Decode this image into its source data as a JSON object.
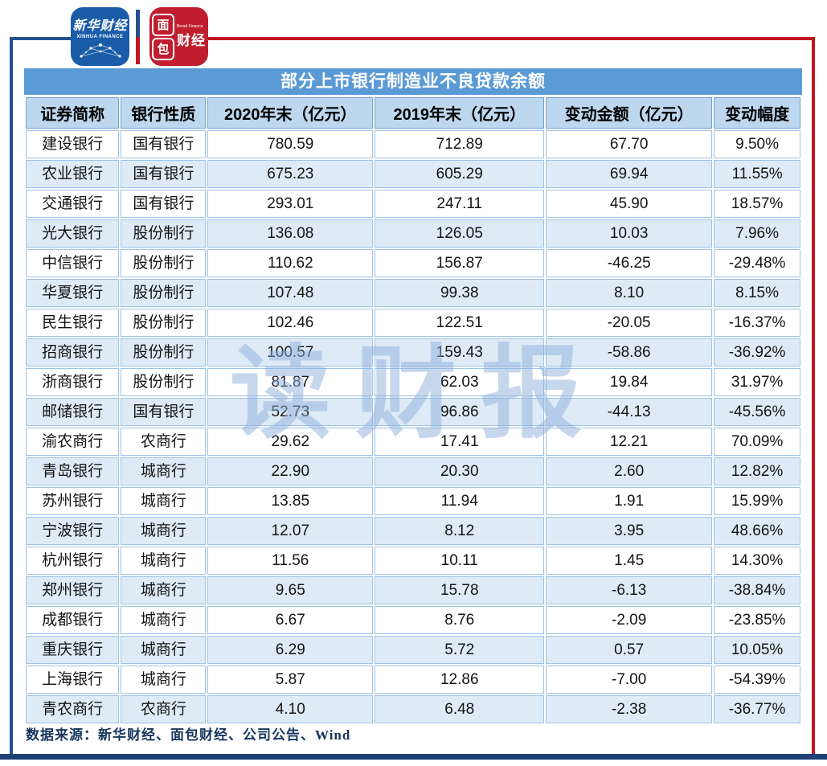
{
  "logos": {
    "xinhua": {
      "title": "新华财经",
      "subtitle": "XINHUA FINANCE"
    },
    "bread": {
      "char_top": "面",
      "char_bottom": "包",
      "caijing": "财经",
      "subtitle": "Bread Finance"
    }
  },
  "table": {
    "title": "部分上市银行制造业不良贷款余额",
    "columns": [
      "证券简称",
      "银行性质",
      "2020年末（亿元）",
      "2019年末（亿元）",
      "变动金额（亿元）",
      "变动幅度"
    ],
    "rows": [
      [
        "建设银行",
        "国有银行",
        "780.59",
        "712.89",
        "67.70",
        "9.50%"
      ],
      [
        "农业银行",
        "国有银行",
        "675.23",
        "605.29",
        "69.94",
        "11.55%"
      ],
      [
        "交通银行",
        "国有银行",
        "293.01",
        "247.11",
        "45.90",
        "18.57%"
      ],
      [
        "光大银行",
        "股份制行",
        "136.08",
        "126.05",
        "10.03",
        "7.96%"
      ],
      [
        "中信银行",
        "股份制行",
        "110.62",
        "156.87",
        "-46.25",
        "-29.48%"
      ],
      [
        "华夏银行",
        "股份制行",
        "107.48",
        "99.38",
        "8.10",
        "8.15%"
      ],
      [
        "民生银行",
        "股份制行",
        "102.46",
        "122.51",
        "-20.05",
        "-16.37%"
      ],
      [
        "招商银行",
        "股份制行",
        "100.57",
        "159.43",
        "-58.86",
        "-36.92%"
      ],
      [
        "浙商银行",
        "股份制行",
        "81.87",
        "62.03",
        "19.84",
        "31.97%"
      ],
      [
        "邮储银行",
        "国有银行",
        "52.73",
        "96.86",
        "-44.13",
        "-45.56%"
      ],
      [
        "渝农商行",
        "农商行",
        "29.62",
        "17.41",
        "12.21",
        "70.09%"
      ],
      [
        "青岛银行",
        "城商行",
        "22.90",
        "20.30",
        "2.60",
        "12.82%"
      ],
      [
        "苏州银行",
        "城商行",
        "13.85",
        "11.94",
        "1.91",
        "15.99%"
      ],
      [
        "宁波银行",
        "城商行",
        "12.07",
        "8.12",
        "3.95",
        "48.66%"
      ],
      [
        "杭州银行",
        "城商行",
        "11.56",
        "10.11",
        "1.45",
        "14.30%"
      ],
      [
        "郑州银行",
        "城商行",
        "9.65",
        "15.78",
        "-6.13",
        "-38.84%"
      ],
      [
        "成都银行",
        "城商行",
        "6.67",
        "8.76",
        "-2.09",
        "-23.85%"
      ],
      [
        "重庆银行",
        "城商行",
        "6.29",
        "5.72",
        "0.57",
        "10.05%"
      ],
      [
        "上海银行",
        "城商行",
        "5.87",
        "12.86",
        "-7.00",
        "-54.39%"
      ],
      [
        "青农商行",
        "农商行",
        "4.10",
        "6.48",
        "-2.38",
        "-36.77%"
      ]
    ]
  },
  "chart_data": {
    "type": "table",
    "title": "部分上市银行制造业不良贷款余额",
    "columns": [
      "证券简称",
      "银行性质",
      "2020年末（亿元）",
      "2019年末（亿元）",
      "变动金额（亿元）",
      "变动幅度"
    ],
    "banks": [
      "建设银行",
      "农业银行",
      "交通银行",
      "光大银行",
      "中信银行",
      "华夏银行",
      "民生银行",
      "招商银行",
      "浙商银行",
      "邮储银行",
      "渝农商行",
      "青岛银行",
      "苏州银行",
      "宁波银行",
      "杭州银行",
      "郑州银行",
      "成都银行",
      "重庆银行",
      "上海银行",
      "青农商行"
    ],
    "bank_type": [
      "国有银行",
      "国有银行",
      "国有银行",
      "股份制行",
      "股份制行",
      "股份制行",
      "股份制行",
      "股份制行",
      "股份制行",
      "国有银行",
      "农商行",
      "城商行",
      "城商行",
      "城商行",
      "城商行",
      "城商行",
      "城商行",
      "城商行",
      "城商行",
      "农商行"
    ],
    "end_2020_yi_yuan": [
      780.59,
      675.23,
      293.01,
      136.08,
      110.62,
      107.48,
      102.46,
      100.57,
      81.87,
      52.73,
      29.62,
      22.9,
      13.85,
      12.07,
      11.56,
      9.65,
      6.67,
      6.29,
      5.87,
      4.1
    ],
    "end_2019_yi_yuan": [
      712.89,
      605.29,
      247.11,
      126.05,
      156.87,
      99.38,
      122.51,
      159.43,
      62.03,
      96.86,
      17.41,
      20.3,
      11.94,
      8.12,
      10.11,
      15.78,
      8.76,
      5.72,
      12.86,
      6.48
    ],
    "change_amount_yi_yuan": [
      67.7,
      69.94,
      45.9,
      10.03,
      -46.25,
      8.1,
      -20.05,
      -58.86,
      19.84,
      -44.13,
      12.21,
      2.6,
      1.91,
      3.95,
      1.45,
      -6.13,
      -2.09,
      0.57,
      -7.0,
      -2.38
    ],
    "change_pct": [
      "9.50%",
      "11.55%",
      "18.57%",
      "7.96%",
      "-29.48%",
      "8.15%",
      "-16.37%",
      "-36.92%",
      "31.97%",
      "-45.56%",
      "70.09%",
      "12.82%",
      "15.99%",
      "48.66%",
      "14.30%",
      "-38.84%",
      "-23.85%",
      "10.05%",
      "-54.39%",
      "-36.77%"
    ]
  },
  "watermark": "读财报",
  "footer": {
    "source": "数据来源：新华财经、面包财经、公司公告、Wind"
  },
  "colors": {
    "title_bar": "#5B9BD5",
    "header_row": "#BDD7EE",
    "alt_row": "#DEEBF7",
    "cell_border": "#9DC3E6",
    "frame_blue": "#24518F",
    "frame_red": "#C01622",
    "frame_bottom_navy": "#1F4077",
    "xinhua_logo_blue": "#1A5CA8",
    "bread_logo_red": "#C01E2E",
    "watermark_blue": "#8FB0DC",
    "footer_text": "#17365D"
  }
}
